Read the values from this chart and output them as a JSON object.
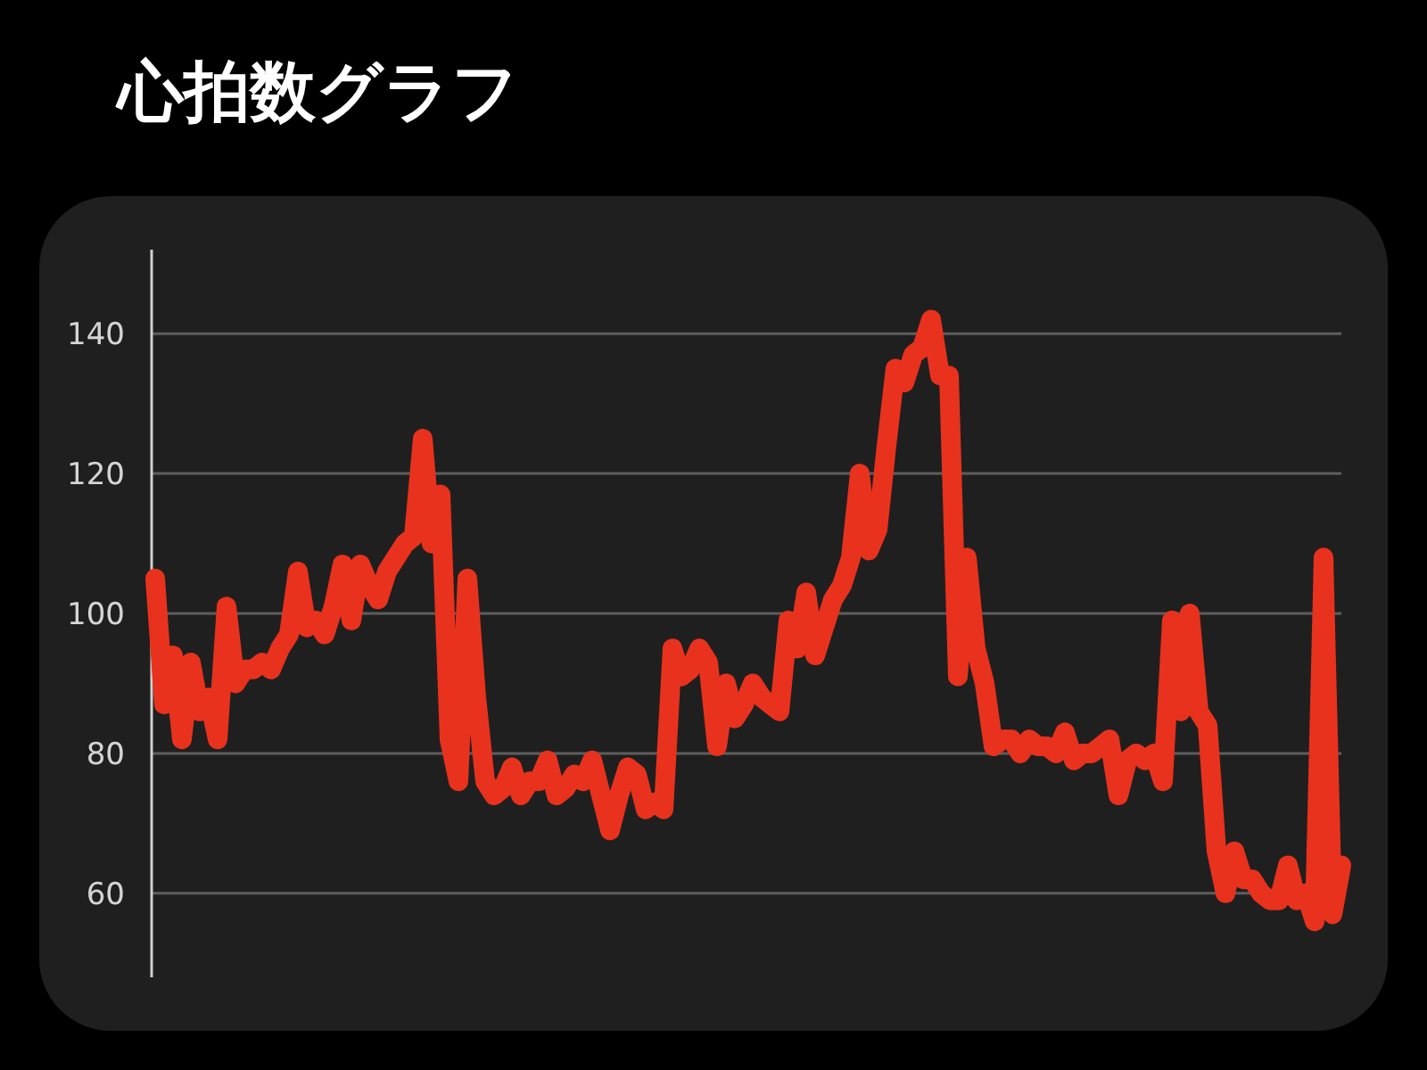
{
  "chart_data": {
    "type": "line",
    "title": "心拍数グラフ",
    "categories": [
      null,
      null,
      null,
      null,
      null,
      null,
      null,
      null,
      null,
      null,
      null,
      null,
      null,
      null,
      null,
      null,
      null,
      null,
      null,
      null,
      null,
      null,
      null,
      null,
      null,
      null,
      null,
      null,
      null,
      null,
      null,
      null,
      null,
      null,
      null,
      null,
      null,
      null,
      null,
      null,
      null,
      null,
      null,
      null,
      null,
      null,
      null,
      null,
      null,
      null,
      null,
      null,
      null,
      null,
      null,
      null,
      null,
      null,
      null,
      null,
      null,
      null,
      null,
      null,
      null,
      null,
      null,
      null,
      null,
      null,
      null,
      null,
      null,
      null,
      null,
      null,
      null,
      null,
      null,
      null,
      null,
      null,
      null,
      null,
      null,
      null,
      null,
      null,
      null,
      null,
      null,
      null,
      null,
      null,
      null,
      null,
      null,
      null,
      null,
      null,
      null,
      null,
      null,
      null,
      null,
      null,
      null,
      null,
      null,
      null,
      null,
      null,
      null,
      null,
      null,
      null,
      null,
      null,
      null,
      null,
      null,
      null,
      null,
      null,
      null,
      null,
      null,
      null,
      null,
      null,
      null,
      null,
      null,
      null
    ],
    "values": [
      105,
      87,
      94,
      82,
      93,
      86,
      88,
      82,
      101,
      90,
      92,
      92,
      93,
      92,
      95,
      97,
      106,
      98,
      99,
      97,
      101,
      107,
      99,
      107,
      104,
      102,
      106,
      108,
      110,
      111,
      125,
      110,
      117,
      82,
      76,
      105,
      88,
      76,
      74,
      75,
      78,
      74,
      76,
      76,
      79,
      74,
      75,
      77,
      76,
      79,
      74,
      69,
      74,
      78,
      77,
      72,
      73,
      72,
      95,
      91,
      92,
      95,
      93,
      81,
      90,
      85,
      87,
      90,
      88,
      87,
      86,
      99,
      95,
      103,
      94,
      98,
      102,
      104,
      108,
      120,
      109,
      112,
      124,
      135,
      133,
      137,
      138,
      142,
      134,
      134,
      91,
      108,
      95,
      90,
      81,
      82,
      82,
      80,
      82,
      81,
      81,
      80,
      83,
      79,
      80,
      80,
      81,
      82,
      74,
      79,
      80,
      79,
      80,
      76,
      99,
      86,
      100,
      86,
      84,
      66,
      60,
      66,
      62,
      62,
      60,
      59,
      59,
      64,
      59,
      60,
      56,
      108,
      57,
      64
    ],
    "color": "#e8321e",
    "ylim": [
      48,
      152
    ],
    "yticks": [
      60,
      80,
      100,
      120,
      140
    ],
    "grid": "y",
    "line_style": "solid"
  }
}
